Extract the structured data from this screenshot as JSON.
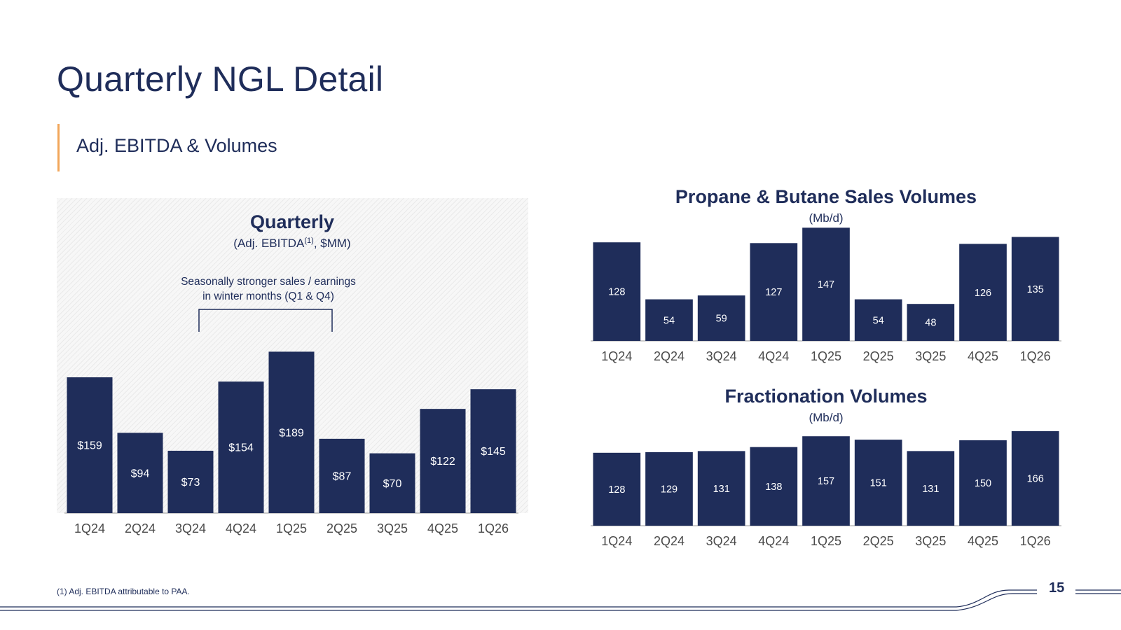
{
  "title": "Quarterly NGL Detail",
  "subtitle": "Adj. EBITDA & Volumes",
  "footnote": "(1) Adj. EBITDA attributable to PAA.",
  "page_number": "15",
  "colors": {
    "bar": "#1f2d5a",
    "accent": "#f2a65a",
    "text": "#1f2d5a",
    "tick": "#4a4a4a"
  },
  "chart_data": [
    {
      "type": "bar",
      "title": "Quarterly",
      "subtitle_prefix": "(Adj. EBITDA",
      "subtitle_sup": "(1)",
      "subtitle_suffix": ", $MM)",
      "annotation": [
        "Seasonally stronger sales / earnings",
        "in winter months (Q1 & Q4)"
      ],
      "categories": [
        "1Q24",
        "2Q24",
        "3Q24",
        "4Q24",
        "1Q25",
        "2Q25",
        "3Q25",
        "4Q25",
        "1Q26"
      ],
      "values": [
        159,
        94,
        73,
        154,
        189,
        87,
        70,
        122,
        145
      ],
      "labels": [
        "$159",
        "$94",
        "$73",
        "$154",
        "$189",
        "$87",
        "$70",
        "$122",
        "$145"
      ],
      "ylim": [
        0,
        200
      ]
    },
    {
      "type": "bar",
      "title": "Propane & Butane Sales Volumes",
      "unit": "(Mb/d)",
      "categories": [
        "1Q24",
        "2Q24",
        "3Q24",
        "4Q24",
        "1Q25",
        "2Q25",
        "3Q25",
        "4Q25",
        "1Q26"
      ],
      "values": [
        128,
        54,
        59,
        127,
        147,
        54,
        48,
        126,
        135
      ],
      "labels": [
        "128",
        "54",
        "59",
        "127",
        "147",
        "54",
        "48",
        "126",
        "135"
      ],
      "ylim": [
        0,
        150
      ]
    },
    {
      "type": "bar",
      "title": "Fractionation Volumes",
      "unit": "(Mb/d)",
      "categories": [
        "1Q24",
        "2Q24",
        "3Q24",
        "4Q24",
        "1Q25",
        "2Q25",
        "3Q25",
        "4Q25",
        "1Q26"
      ],
      "values": [
        128,
        129,
        131,
        138,
        157,
        151,
        131,
        150,
        166
      ],
      "labels": [
        "128",
        "129",
        "131",
        "138",
        "157",
        "151",
        "131",
        "150",
        "166"
      ],
      "ylim": [
        0,
        172
      ]
    }
  ]
}
